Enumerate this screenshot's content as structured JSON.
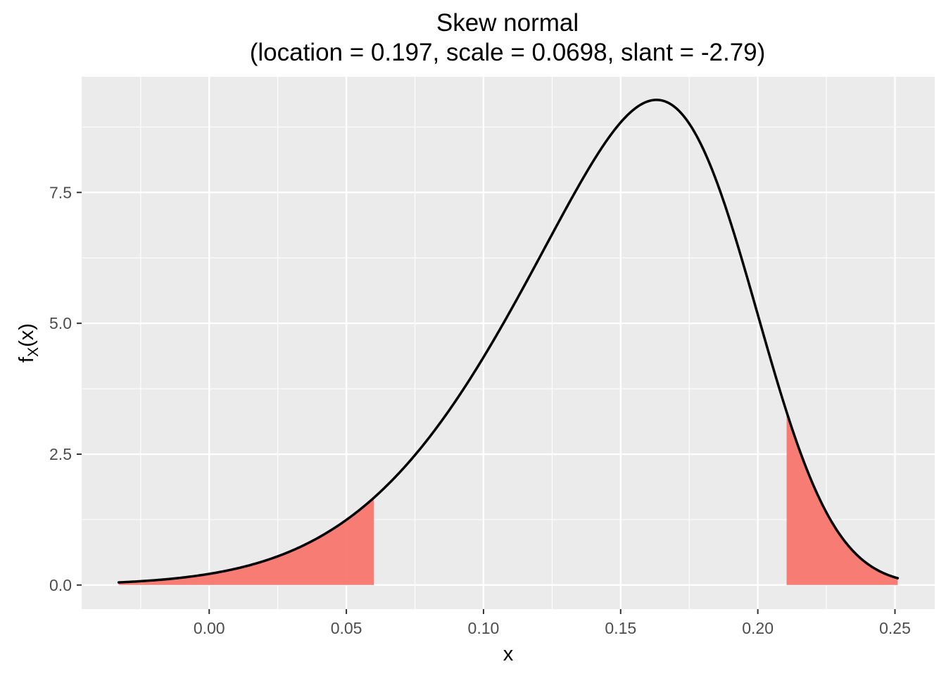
{
  "chart_data": {
    "type": "area",
    "title": "Skew normal",
    "subtitle": "(location = 0.197, scale = 0.0698, slant = -2.79)",
    "xlabel": "x",
    "ylabel_main": "f",
    "ylabel_sub": "X",
    "ylabel_tail": "(x)",
    "xlim": [
      -0.0465,
      0.2645
    ],
    "ylim": [
      -0.46,
      9.71
    ],
    "x_ticks": [
      0.0,
      0.05,
      0.1,
      0.15,
      0.2,
      0.25
    ],
    "x_tick_labels": [
      "0.00",
      "0.05",
      "0.10",
      "0.15",
      "0.20",
      "0.25"
    ],
    "y_ticks": [
      0.0,
      2.5,
      5.0,
      7.5
    ],
    "y_tick_labels": [
      "0.0",
      "2.5",
      "5.0",
      "7.5"
    ],
    "grid": true,
    "distribution": {
      "location": 0.197,
      "scale": 0.0698,
      "slant": -2.79,
      "x_range": [
        -0.033,
        0.251
      ]
    },
    "shaded_regions": [
      {
        "from": -0.033,
        "to": 0.06
      },
      {
        "from": 0.2105,
        "to": 0.251
      }
    ],
    "colors": {
      "panel": "#EBEBEB",
      "grid": "#FFFFFF",
      "curve": "#000000",
      "shade": "#F8766D"
    }
  }
}
